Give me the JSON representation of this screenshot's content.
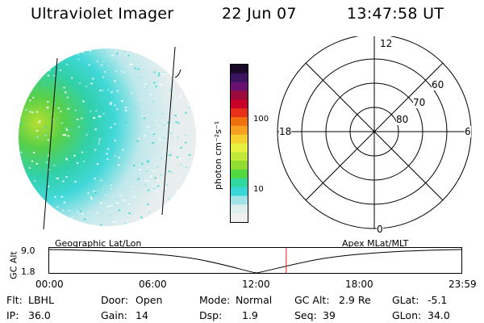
{
  "header": {
    "instrument": "Ultraviolet Imager",
    "date": "22 Jun 07",
    "time": "13:47:58 UT"
  },
  "colorbar": {
    "label": "photon cm⁻²s⁻¹",
    "ticks": [
      "100",
      "10"
    ],
    "scale": "log",
    "colors": [
      "#1a0a28",
      "#3a1460",
      "#6a1070",
      "#9a0a3a",
      "#c8002a",
      "#e83018",
      "#f07010",
      "#f5a020",
      "#f5d030",
      "#e8f040",
      "#c0e838",
      "#90dc30",
      "#50d840",
      "#30d8a0",
      "#38d8d8",
      "#a0e4e8",
      "#dceeee",
      "#f0f0f0"
    ]
  },
  "polar_plot": {
    "mlt_labels": [
      "12",
      "18",
      "6",
      "0"
    ],
    "lat_labels": [
      "60",
      "70",
      "80"
    ]
  },
  "altitude_panel": {
    "left_title": "Geographic Lat/Lon",
    "right_title": "Apex MLat/MLT",
    "ylabel": "GC Alt",
    "yticks": [
      "9.0",
      "1.8"
    ],
    "xticks": [
      "00:00",
      "06:00",
      "12:00",
      "18:00",
      "23:59"
    ],
    "current_time_fraction": 0.575,
    "marker_color": "#e02020"
  },
  "status": {
    "flt_label": "Flt:",
    "flt_value": "LBHL",
    "ip_label": "IP:",
    "ip_value": "36.0",
    "door_label": "Door:",
    "door_value": "Open",
    "gain_label": "Gain:",
    "gain_value": "14",
    "mode_label": "Mode:",
    "mode_value": "Normal",
    "dsp_label": "Dsp:",
    "dsp_value": "1.9",
    "gcalt_label": "GC Alt:",
    "gcalt_value": "2.9 Re",
    "seq_label": "Seq:",
    "seq_value": "39",
    "glat_label": "GLat:",
    "glat_value": "-5.1",
    "glon_label": "GLon:",
    "glon_value": "34.0"
  }
}
